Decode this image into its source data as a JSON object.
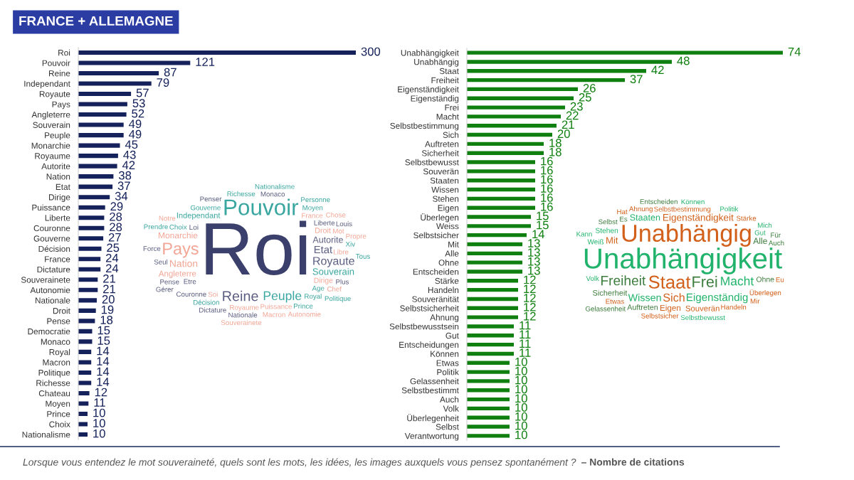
{
  "chart_data": [
    {
      "type": "bar",
      "orientation": "horizontal",
      "title": "FRANCE + ALLEMAGNE",
      "categories": [
        "Roi",
        "Pouvoir",
        "Reine",
        "Independant",
        "Royaute",
        "Pays",
        "Angleterre",
        "Souverain",
        "Peuple",
        "Monarchie",
        "Royaume",
        "Autorite",
        "Nation",
        "Etat",
        "Dirige",
        "Puissance",
        "Liberte",
        "Couronne",
        "Gouverne",
        "Décision",
        "France",
        "Dictature",
        "Souverainete",
        "Autonomie",
        "Nationale",
        "Droit",
        "Pense",
        "Democratie",
        "Monaco",
        "Royal",
        "Macron",
        "Politique",
        "Richesse",
        "Chateau",
        "Moyen",
        "Prince",
        "Choix",
        "Nationalisme"
      ],
      "values": [
        300,
        121,
        87,
        79,
        57,
        53,
        52,
        49,
        49,
        45,
        43,
        42,
        38,
        37,
        34,
        29,
        28,
        28,
        27,
        25,
        24,
        24,
        21,
        21,
        20,
        19,
        18,
        15,
        15,
        14,
        14,
        14,
        14,
        12,
        11,
        10,
        10,
        10
      ],
      "color": "#14215a",
      "data_labels": true,
      "tick_labels": "y",
      "annotations": [
        "Lorsque vous entendez le mot souveraineté, quels sont les mots, les idées, les images auxquels vous pensez spontanément ?",
        "– Nombre de citations"
      ]
    },
    {
      "type": "other",
      "categories": [
        "Roi",
        "Pouvoir",
        "Pays",
        "Reine",
        "Peuple",
        "Royaute",
        "Etat",
        "Nation",
        "Souverain",
        "Autorite",
        "Monarchie",
        "Angleterre",
        "Independant",
        "Droit",
        "Dirige",
        "Loi",
        "Etre",
        "Soi",
        "Liberte",
        "Royaume",
        "Puissance",
        "France",
        "Couronne",
        "Age",
        "Libre",
        "Choix",
        "Gouverne",
        "Décision",
        "Royal",
        "Seul",
        "Mot",
        "Pense",
        "Moyen",
        "Prince",
        "Chef",
        "Xiv",
        "Plus",
        "Dictature",
        "Nationale",
        "Louis",
        "Macron",
        "Monaco",
        "Richesse",
        "Propre",
        "Chose",
        "Force",
        "Penser",
        "Prendre",
        "Politique",
        "Autonomie",
        "Souverainete",
        "Nationalisme",
        "Personne",
        "Tous",
        "Notre",
        "Gérer"
      ],
      "colors": [
        "#3b3f6b",
        "#3aa6a0",
        "#f2a595",
        "#5b5e80",
        "#3aa6a0",
        "#5b5e80",
        "#5b5e80",
        "#f2a595",
        "#3aa6a0",
        "#5b5e80",
        "#f2a595",
        "#f2a595",
        "#3aa6a0",
        "#f2a595",
        "#f2a595",
        "#5b5e80",
        "#5b5e80",
        "#f2a595",
        "#5b5e80",
        "#f2a595",
        "#f2a595",
        "#f2a595",
        "#5b5e80",
        "#3aa6a0",
        "#f2a595",
        "#3aa6a0",
        "#3aa6a0",
        "#3aa6a0",
        "#3aa6a0",
        "#5b5e80",
        "#f2a595",
        "#5b5e80",
        "#3aa6a0",
        "#3aa6a0",
        "#f2a595",
        "#3aa6a0",
        "#5b5e80",
        "#5b5e80",
        "#5b5e80",
        "#5b5e80",
        "#f2a595",
        "#5b5e80",
        "#3aa6a0",
        "#f2a595",
        "#f2a595",
        "#5b5e80",
        "#5b5e80",
        "#3aa6a0",
        "#3aa6a0",
        "#f2a595",
        "#f2a595",
        "#3aa6a0",
        "#3aa6a0",
        "#3aa6a0",
        "#f2a595",
        "#5b5e80"
      ]
    },
    {
      "type": "bar",
      "orientation": "horizontal",
      "categories": [
        "Unabhängigkeit",
        "Unabhängig",
        "Staat",
        "Freiheit",
        "Eigenständigkeit",
        "Eigenständig",
        "Frei",
        "Macht",
        "Selbstbestimmung",
        "Sich",
        "Auftreten",
        "Sicherheit",
        "Selbstbewusst",
        "Souverän",
        "Staaten",
        "Wissen",
        "Stehen",
        "Eigen",
        "Überlegen",
        "Weiss",
        "Selbstsicher",
        "Mit",
        "Alle",
        "Ohne",
        "Entscheiden",
        "Stärke",
        "Handeln",
        "Souveränität",
        "Selbstsicherheit",
        "Ahnung",
        "Selbstbewusstsein",
        "Gut",
        "Entscheidungen",
        "Können",
        "Etwas",
        "Politik",
        "Gelassenheit",
        "Selbstbestimmt",
        "Auch",
        "Volk",
        "Überlegenheit",
        "Selbst",
        "Verantwortung"
      ],
      "values": [
        74,
        48,
        42,
        37,
        26,
        25,
        23,
        22,
        21,
        20,
        18,
        18,
        16,
        16,
        16,
        16,
        16,
        16,
        15,
        15,
        14,
        13,
        13,
        13,
        13,
        12,
        12,
        12,
        12,
        12,
        11,
        11,
        11,
        11,
        10,
        10,
        10,
        10,
        10,
        10,
        10,
        10,
        10
      ],
      "color": "#0f800f",
      "data_labels": true,
      "tick_labels": "y"
    },
    {
      "type": "other",
      "categories": [
        "Unabhängigkeit",
        "Unabhängig",
        "Staat",
        "Frei",
        "Freiheit",
        "Macht",
        "Sich",
        "Eigenständig",
        "Wissen",
        "Eigenständigkeit",
        "Mit",
        "Staaten",
        "Alle",
        "Eigen",
        "Souverän",
        "Sicherheit",
        "Auftreten",
        "Ohne",
        "Stehen",
        "Weiß",
        "Selbstbestimmung",
        "Gut",
        "Handeln",
        "Selbstsicher",
        "Selbstbewusst",
        "Überlegen",
        "Stärke",
        "Volk",
        "Es",
        "Auch",
        "Etwas",
        "Ahnung",
        "Selbst",
        "Politik",
        "Mir",
        "Eu",
        "Für",
        "Können",
        "Entscheiden",
        "Mich",
        "Hat",
        "Kann",
        "Gelassenheit"
      ],
      "colors": [
        "#21b36b",
        "#d2601a",
        "#d2601a",
        "#3d7d3d",
        "#3d7d3d",
        "#21b36b",
        "#d2601a",
        "#21b36b",
        "#21b36b",
        "#d2601a",
        "#d2601a",
        "#21b36b",
        "#3d7d3d",
        "#d2601a",
        "#d2601a",
        "#3d7d3d",
        "#3d7d3d",
        "#3d7d3d",
        "#21b36b",
        "#21b36b",
        "#d2601a",
        "#21b36b",
        "#d2601a",
        "#d2601a",
        "#21b36b",
        "#d2601a",
        "#d2601a",
        "#21b36b",
        "#3d7d3d",
        "#3d7d3d",
        "#d2601a",
        "#d2601a",
        "#3d7d3d",
        "#21b36b",
        "#d2601a",
        "#d2601a",
        "#3d7d3d",
        "#21b36b",
        "#3d7d3d",
        "#21b36b",
        "#d2601a",
        "#21b36b",
        "#3d7d3d"
      ]
    }
  ]
}
